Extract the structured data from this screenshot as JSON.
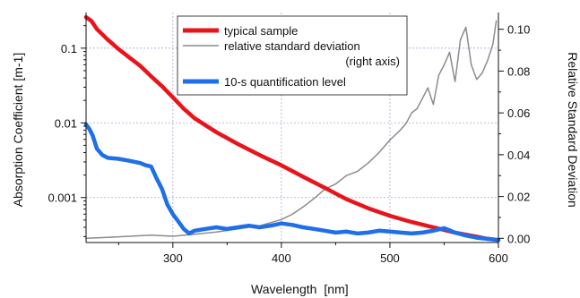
{
  "chart_data": {
    "type": "line",
    "x_axis": {
      "label": "Wavelength",
      "unit": "[nm]",
      "range": [
        220,
        600
      ],
      "ticks": [
        300,
        400,
        500,
        600
      ],
      "tick_labels": [
        "300",
        "400",
        "500",
        "600"
      ]
    },
    "y_axis_left": {
      "label": "Absorption Coefficient",
      "unit": "[m-1]",
      "scale": "log",
      "range": [
        0.00025,
        0.3
      ],
      "ticks": [
        0.001,
        0.01,
        0.1
      ],
      "tick_labels": [
        "0.001",
        "0.01",
        "0.1"
      ]
    },
    "y_axis_right": {
      "label": "Relative Standard Deviation",
      "scale": "linear",
      "range": [
        -0.002,
        0.108
      ],
      "ticks": [
        0,
        0.02,
        0.04,
        0.06,
        0.08,
        0.1
      ],
      "tick_labels": [
        "0.00",
        "0.02",
        "0.04",
        "0.06",
        "0.08",
        "0.10"
      ]
    },
    "grid": true,
    "legend_position": "top-center",
    "legend": {
      "typical_sample": "typical sample",
      "rsd_line1": "relative standard deviation",
      "rsd_line2": "(right axis)",
      "quantification": "10-s quantification level"
    },
    "series": [
      {
        "name": "typical sample",
        "axis": "left",
        "color": "#e8141c",
        "x": [
          220,
          225,
          230,
          240,
          250,
          260,
          270,
          280,
          290,
          300,
          310,
          320,
          340,
          360,
          380,
          400,
          420,
          440,
          460,
          480,
          500,
          520,
          540,
          560,
          580,
          590,
          600
        ],
        "y": [
          0.26,
          0.23,
          0.18,
          0.13,
          0.097,
          0.075,
          0.058,
          0.042,
          0.031,
          0.022,
          0.0155,
          0.0115,
          0.0075,
          0.0052,
          0.0037,
          0.0027,
          0.0019,
          0.00135,
          0.00095,
          0.00072,
          0.00057,
          0.00047,
          0.0004,
          0.00034,
          0.0003,
          0.00028,
          0.00027
        ]
      },
      {
        "name": "relative standard deviation",
        "axis": "right",
        "color": "#8c8c8c",
        "x": [
          220,
          240,
          260,
          280,
          300,
          320,
          340,
          360,
          380,
          400,
          410,
          420,
          430,
          440,
          450,
          460,
          470,
          480,
          490,
          500,
          510,
          515,
          520,
          525,
          530,
          535,
          540,
          545,
          550,
          555,
          560,
          565,
          570,
          575,
          580,
          585,
          590,
          595,
          598
        ],
        "y": [
          0.0,
          0.0005,
          0.001,
          0.0015,
          0.001,
          0.002,
          0.003,
          0.0045,
          0.006,
          0.009,
          0.0115,
          0.015,
          0.019,
          0.0235,
          0.026,
          0.03,
          0.032,
          0.036,
          0.041,
          0.047,
          0.052,
          0.055,
          0.06,
          0.062,
          0.067,
          0.072,
          0.064,
          0.078,
          0.083,
          0.089,
          0.075,
          0.095,
          0.101,
          0.083,
          0.076,
          0.079,
          0.085,
          0.093,
          0.104
        ]
      },
      {
        "name": "10-s quantification level",
        "axis": "left",
        "color": "#1e6fe8",
        "x": [
          220,
          223,
          226,
          230,
          235,
          240,
          250,
          260,
          270,
          275,
          280,
          285,
          290,
          295,
          300,
          305,
          310,
          315,
          320,
          330,
          340,
          350,
          360,
          370,
          380,
          390,
          400,
          410,
          420,
          430,
          440,
          450,
          460,
          470,
          480,
          490,
          500,
          510,
          520,
          530,
          540,
          550,
          560,
          570,
          580,
          590,
          600
        ],
        "y": [
          0.0095,
          0.0083,
          0.0068,
          0.0045,
          0.0037,
          0.0034,
          0.0033,
          0.0031,
          0.0029,
          0.0027,
          0.0026,
          0.0018,
          0.0013,
          0.0008,
          0.0006,
          0.00048,
          0.00038,
          0.00033,
          0.00036,
          0.00038,
          0.0004,
          0.00038,
          0.0004,
          0.00042,
          0.0004,
          0.00042,
          0.00045,
          0.00043,
          0.0004,
          0.00038,
          0.00036,
          0.00034,
          0.00035,
          0.00033,
          0.00034,
          0.00036,
          0.00035,
          0.00034,
          0.00033,
          0.00034,
          0.00036,
          0.00039,
          0.00034,
          0.00031,
          0.00029,
          0.00028,
          0.00027
        ]
      }
    ]
  }
}
